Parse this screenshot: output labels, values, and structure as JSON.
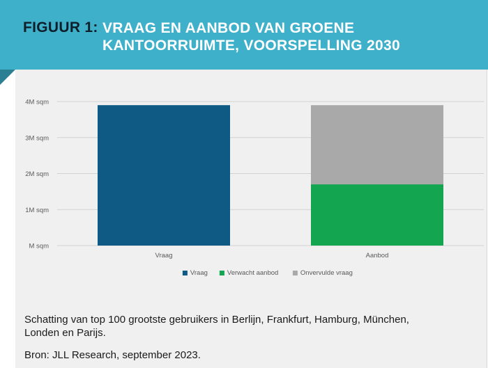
{
  "header": {
    "figure_label": "FIGUUR 1:",
    "title": "VRAAG EN AANBOD VAN GROENE KANTOORRUIMTE, VOORSPELLING 2030"
  },
  "chart_data": {
    "type": "bar",
    "stacked": true,
    "categories": [
      "Vraag",
      "Aanbod"
    ],
    "y_ticks": [
      "M sqm",
      "1M sqm",
      "2M sqm",
      "3M sqm",
      "4M sqm"
    ],
    "ylim": [
      0,
      4
    ],
    "grid": true,
    "legend_position": "bottom",
    "series": [
      {
        "name": "Vraag",
        "color": "#0f5a84",
        "values": [
          3.9,
          0
        ]
      },
      {
        "name": "Verwacht aanbod",
        "color": "#13a550",
        "values": [
          0,
          1.7
        ]
      },
      {
        "name": "Onvervulde vraag",
        "color": "#a9a9a9",
        "values": [
          0,
          2.2
        ]
      }
    ]
  },
  "caption": "Schatting van top 100 grootste gebruikers in Berlijn, Frankfurt, Hamburg, München, Londen en Parijs.",
  "source": "Bron: JLL Research, september 2023."
}
